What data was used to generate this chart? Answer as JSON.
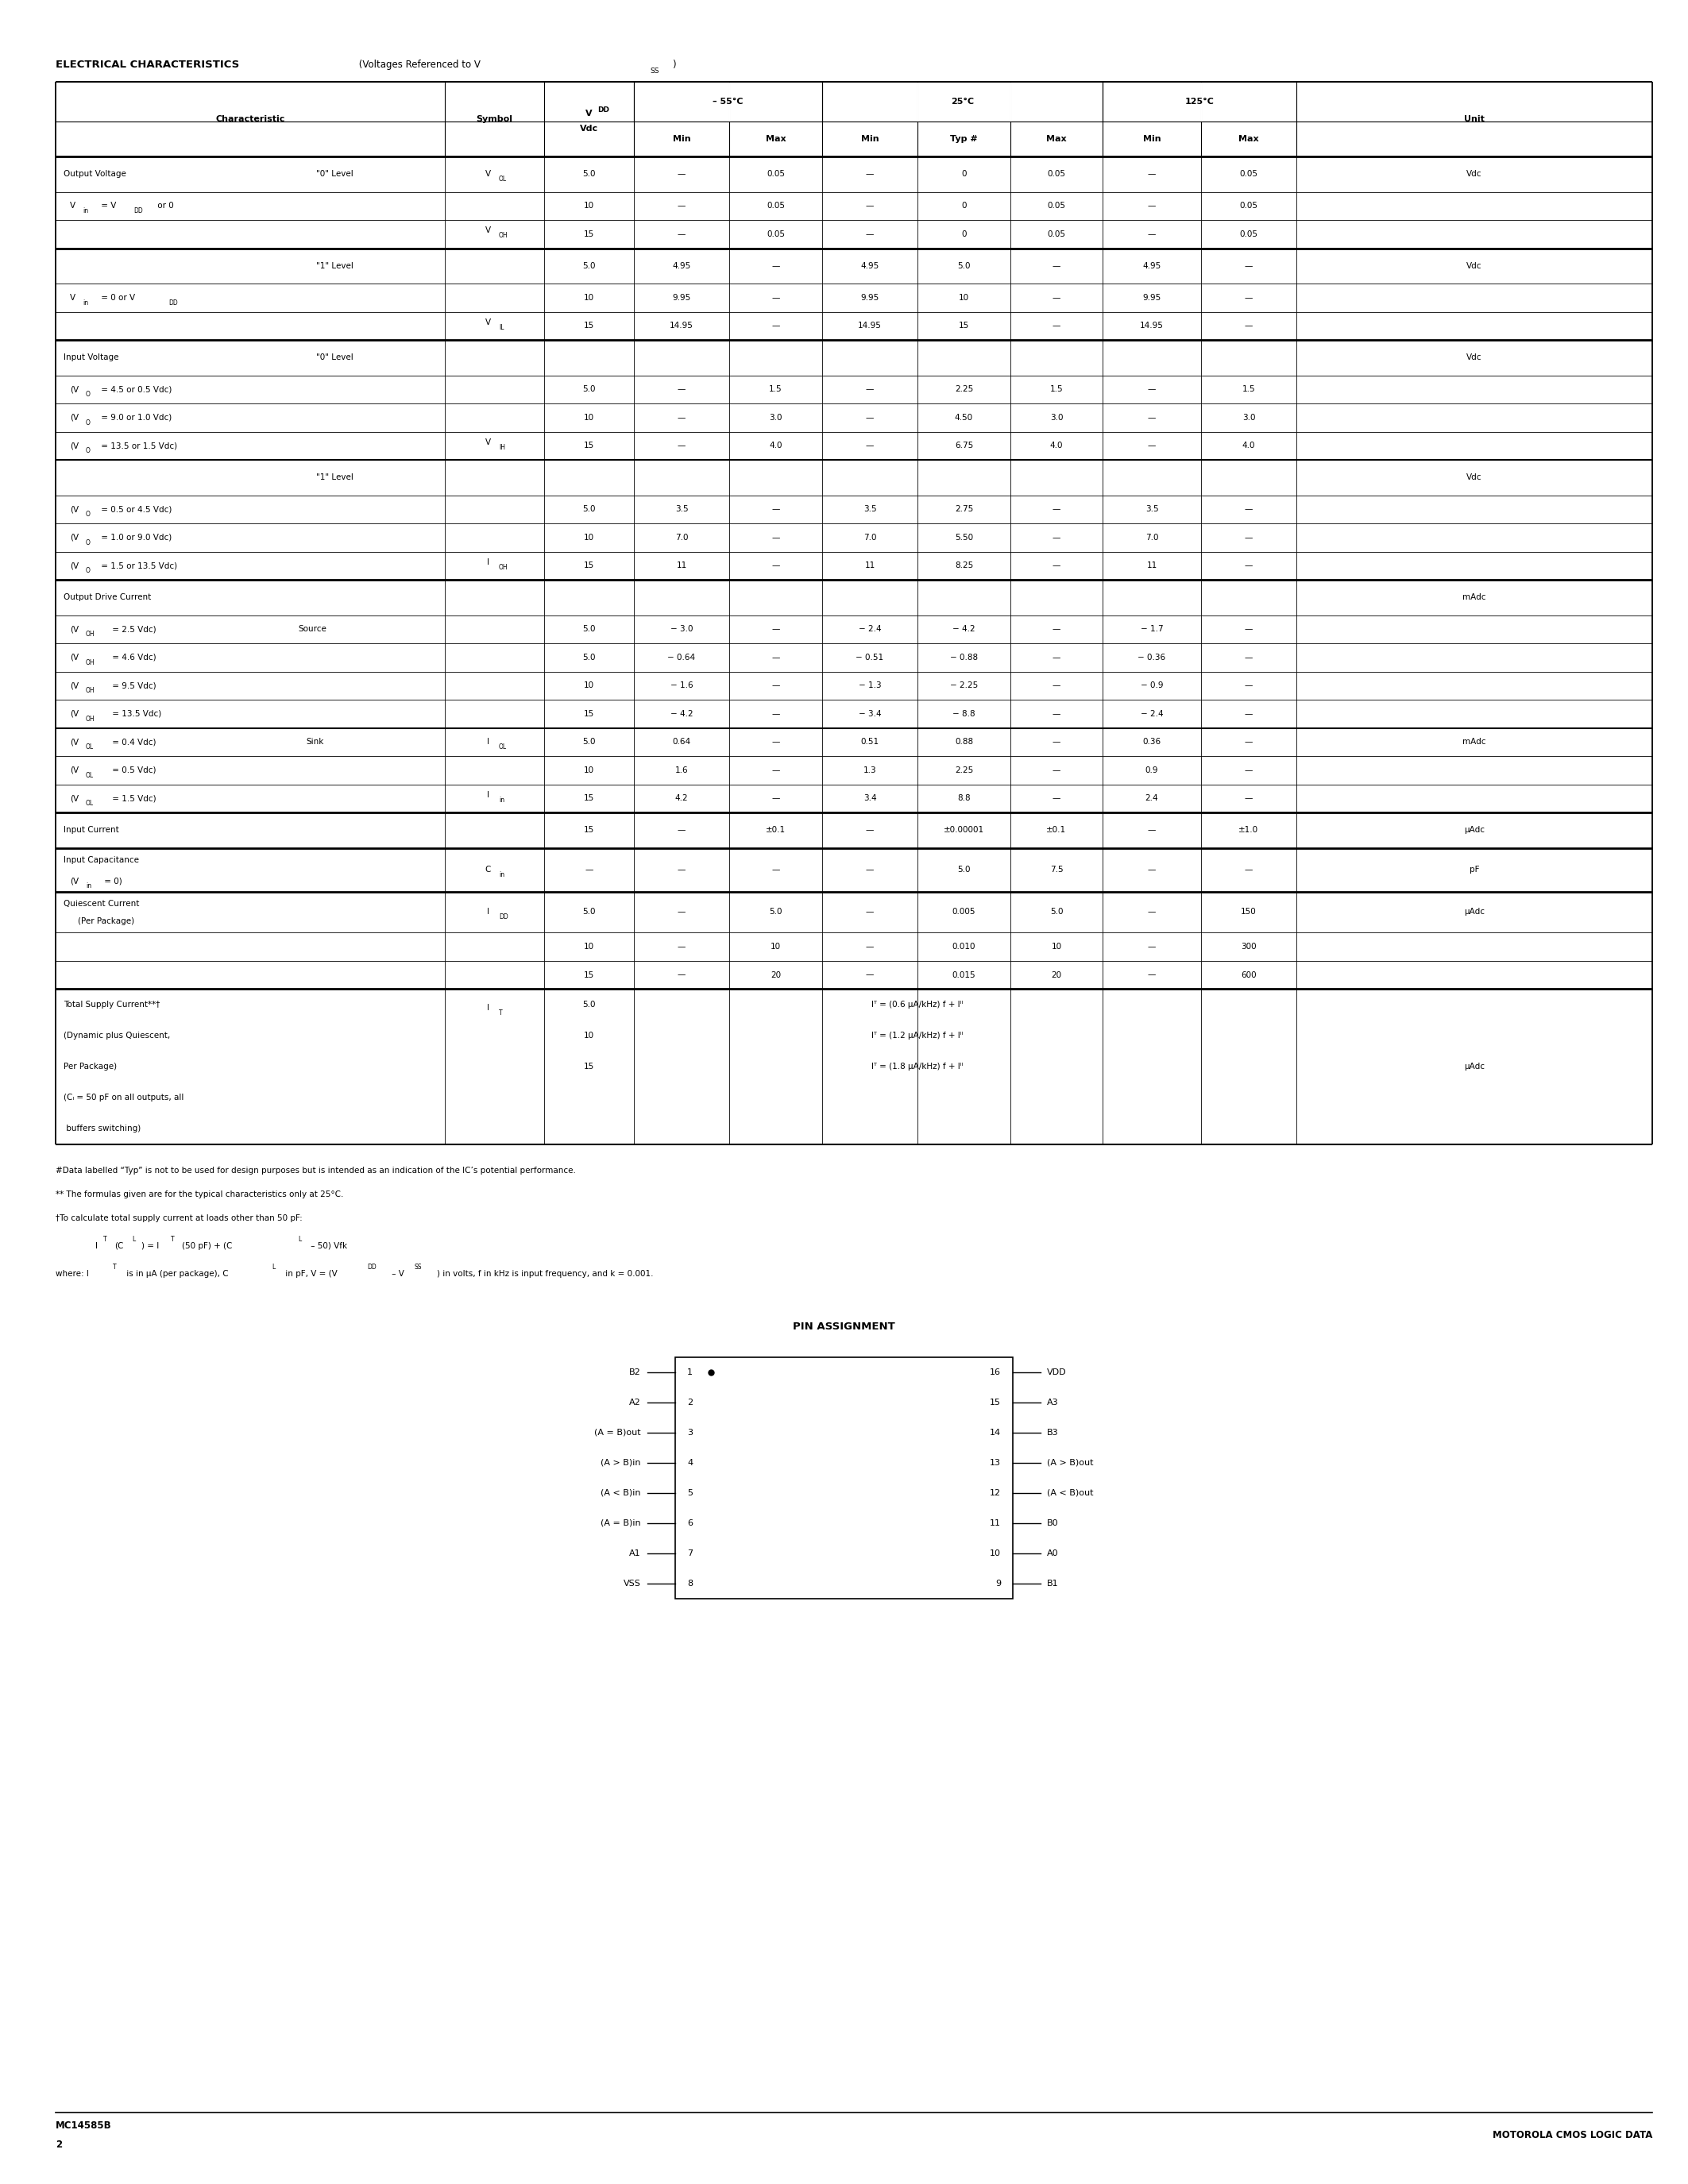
{
  "bg_color": "#ffffff",
  "text_color": "#000000",
  "title_bold": "ELECTRICAL CHARACTERISTICS",
  "title_normal": " (Voltages Referenced to V",
  "title_sub": "SS",
  "title_end": ")",
  "bottom_left_line1": "MC14585B",
  "bottom_left_line2": "2",
  "bottom_right": "MOTOROLA CMOS LOGIC DATA",
  "footer_lines": [
    "#Data labelled “Typ” is not to be used for design purposes but is intended as an indication of the IC’s potential performance.",
    "** The formulas given are for the typical characteristics only at 25°C.",
    "†To calculate total supply current at loads other than 50 pF:"
  ],
  "footer_formula": "     IT(CL) = IT(50 pF) + (CL – 50) Vfk",
  "footer_where": "where: IT is in μA (per package), CL in pF, V = (VDD – VSS) in volts, f in kHz is input frequency, and k = 0.001.",
  "pin_title": "PIN ASSIGNMENT",
  "pins_left_labels": [
    "B2",
    "A2",
    "(A = B)out",
    "(A > B)in",
    "(A < B)in",
    "(A = B)in",
    "A1",
    "VSS"
  ],
  "pins_left_nums": [
    1,
    2,
    3,
    4,
    5,
    6,
    7,
    8
  ],
  "pins_right_nums": [
    16,
    15,
    14,
    13,
    12,
    11,
    10,
    9
  ],
  "pins_right_labels": [
    "VDD",
    "A3",
    "B3",
    "(A > B)out",
    "(A < B)out",
    "B0",
    "A0",
    "B1"
  ]
}
